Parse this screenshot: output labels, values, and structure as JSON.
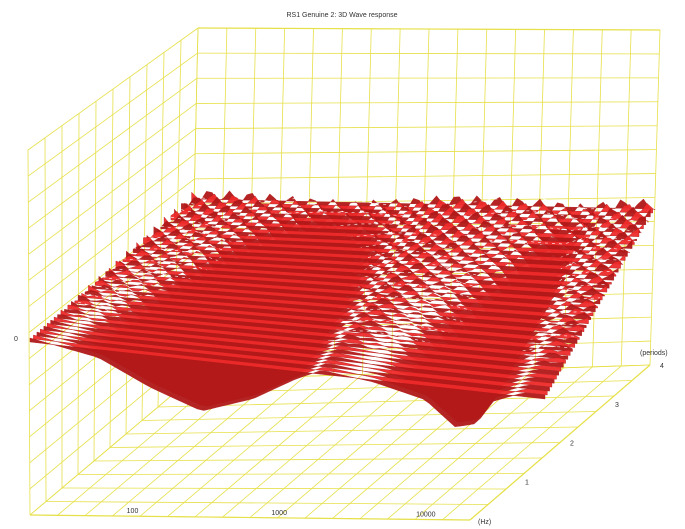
{
  "chart_data": {
    "type": "area",
    "subtype": "3d-waterfall",
    "title": "RS1 Genuine 2: 3D Wave response",
    "xlabel": "(Hz)",
    "ylabel": "",
    "zlabel": "(periods)",
    "x_scale": "log",
    "x_ticks": [
      "100",
      "1000",
      "10000"
    ],
    "z_ticks": [
      "1",
      "2",
      "3",
      "4"
    ],
    "y_tick_left": "0",
    "x_range": [
      20,
      20000
    ],
    "z_range": [
      0,
      4
    ],
    "grid": true,
    "series": [
      {
        "x": [
          20,
          50,
          100,
          200,
          400,
          700,
          1000,
          2000,
          4000,
          6000,
          8000,
          10000,
          15000,
          20000
        ],
        "y": [
          0,
          -2,
          -6,
          -9,
          -6,
          -2,
          0,
          -1,
          -3,
          -7,
          -6,
          -2,
          0,
          0
        ]
      }
    ]
  },
  "colors": {
    "surface": "#ee2a2a",
    "surface_dark": "#b01818",
    "grid": "#e6e04a",
    "ridge": "#ffffff"
  }
}
